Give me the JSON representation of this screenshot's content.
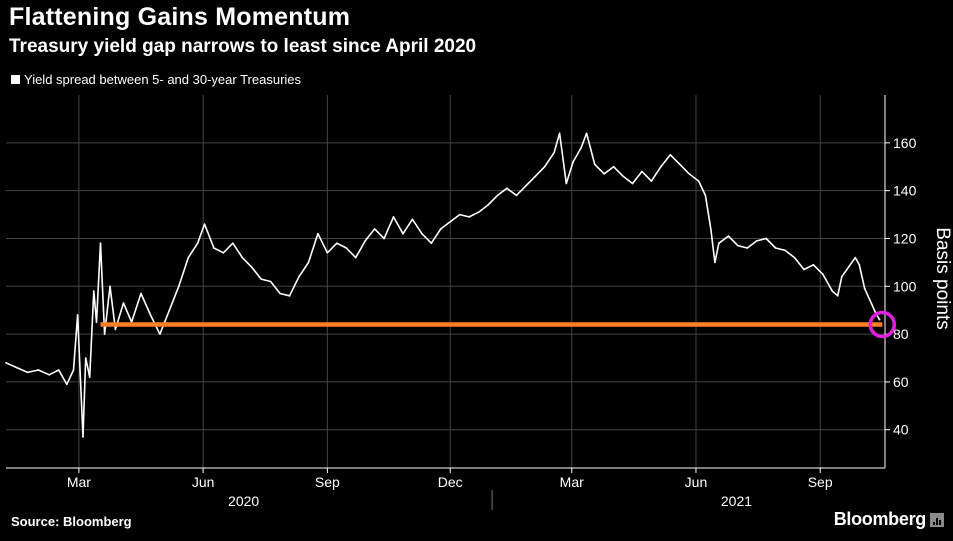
{
  "header": {
    "title": "Flattening Gains Momentum",
    "subtitle": "Treasury yield gap narrows to least since April 2020"
  },
  "legend": {
    "label": "Yield spread between 5- and 30-year Treasuries"
  },
  "footer": {
    "source": "Source: Bloomberg",
    "brand": "Bloomberg"
  },
  "colors": {
    "background": "#000000",
    "series": "#ffffff",
    "gridline": "#444444",
    "reference_line": "#ff7f27",
    "highlight_circle": "#e020e0"
  },
  "chart_data": {
    "type": "line",
    "title": "Flattening Gains Momentum",
    "subtitle": "Treasury yield gap narrows to least since April 2020",
    "ylabel": "Basis points",
    "xlabel": "",
    "ylim": [
      24,
      180
    ],
    "y_ticks": [
      40,
      60,
      80,
      100,
      120,
      140,
      160
    ],
    "x_tick_labels": [
      {
        "date": "2020-03-01",
        "label": "Mar"
      },
      {
        "date": "2020-06-01",
        "label": "Jun"
      },
      {
        "date": "2020-09-01",
        "label": "Sep"
      },
      {
        "date": "2020-12-01",
        "label": "Dec"
      },
      {
        "date": "2021-03-01",
        "label": "Mar"
      },
      {
        "date": "2021-06-01",
        "label": "Jun"
      },
      {
        "date": "2021-09-01",
        "label": "Sep"
      }
    ],
    "year_labels": [
      {
        "date": "2020-07-01",
        "label": "2020"
      },
      {
        "date": "2021-07-01",
        "label": "2021"
      }
    ],
    "x_range": [
      "2020-01-07",
      "2021-10-19"
    ],
    "grid": true,
    "y_axis_side": "right",
    "legend_position": "top-left",
    "series": [
      {
        "name": "Yield spread between 5- and 30-year Treasuries",
        "points": [
          [
            "2020-01-07",
            68
          ],
          [
            "2020-01-15",
            66
          ],
          [
            "2020-01-23",
            64
          ],
          [
            "2020-01-31",
            65
          ],
          [
            "2020-02-08",
            63
          ],
          [
            "2020-02-15",
            65
          ],
          [
            "2020-02-21",
            59
          ],
          [
            "2020-02-26",
            65
          ],
          [
            "2020-02-29",
            88
          ],
          [
            "2020-03-04",
            37
          ],
          [
            "2020-03-06",
            70
          ],
          [
            "2020-03-09",
            62
          ],
          [
            "2020-03-12",
            98
          ],
          [
            "2020-03-14",
            85
          ],
          [
            "2020-03-17",
            118
          ],
          [
            "2020-03-20",
            80
          ],
          [
            "2020-03-24",
            100
          ],
          [
            "2020-03-28",
            82
          ],
          [
            "2020-04-03",
            93
          ],
          [
            "2020-04-09",
            85
          ],
          [
            "2020-04-16",
            97
          ],
          [
            "2020-04-23",
            88
          ],
          [
            "2020-04-30",
            80
          ],
          [
            "2020-05-07",
            90
          ],
          [
            "2020-05-14",
            100
          ],
          [
            "2020-05-21",
            112
          ],
          [
            "2020-05-28",
            118
          ],
          [
            "2020-06-02",
            126
          ],
          [
            "2020-06-09",
            116
          ],
          [
            "2020-06-16",
            114
          ],
          [
            "2020-06-23",
            118
          ],
          [
            "2020-06-30",
            112
          ],
          [
            "2020-07-07",
            108
          ],
          [
            "2020-07-14",
            103
          ],
          [
            "2020-07-21",
            102
          ],
          [
            "2020-07-28",
            97
          ],
          [
            "2020-08-04",
            96
          ],
          [
            "2020-08-11",
            104
          ],
          [
            "2020-08-18",
            110
          ],
          [
            "2020-08-25",
            122
          ],
          [
            "2020-09-01",
            114
          ],
          [
            "2020-09-08",
            118
          ],
          [
            "2020-09-15",
            116
          ],
          [
            "2020-09-22",
            112
          ],
          [
            "2020-09-29",
            119
          ],
          [
            "2020-10-06",
            124
          ],
          [
            "2020-10-13",
            120
          ],
          [
            "2020-10-20",
            129
          ],
          [
            "2020-10-27",
            122
          ],
          [
            "2020-11-03",
            128
          ],
          [
            "2020-11-10",
            122
          ],
          [
            "2020-11-17",
            118
          ],
          [
            "2020-11-24",
            124
          ],
          [
            "2020-12-01",
            127
          ],
          [
            "2020-12-08",
            130
          ],
          [
            "2020-12-15",
            129
          ],
          [
            "2020-12-22",
            131
          ],
          [
            "2020-12-29",
            134
          ],
          [
            "2021-01-05",
            138
          ],
          [
            "2021-01-12",
            141
          ],
          [
            "2021-01-19",
            138
          ],
          [
            "2021-01-26",
            142
          ],
          [
            "2021-02-02",
            146
          ],
          [
            "2021-02-09",
            150
          ],
          [
            "2021-02-16",
            156
          ],
          [
            "2021-02-20",
            164
          ],
          [
            "2021-02-25",
            143
          ],
          [
            "2021-03-02",
            152
          ],
          [
            "2021-03-08",
            158
          ],
          [
            "2021-03-12",
            164
          ],
          [
            "2021-03-18",
            151
          ],
          [
            "2021-03-25",
            147
          ],
          [
            "2021-04-01",
            150
          ],
          [
            "2021-04-08",
            146
          ],
          [
            "2021-04-15",
            143
          ],
          [
            "2021-04-22",
            148
          ],
          [
            "2021-04-29",
            144
          ],
          [
            "2021-05-06",
            150
          ],
          [
            "2021-05-13",
            155
          ],
          [
            "2021-05-20",
            151
          ],
          [
            "2021-05-27",
            147
          ],
          [
            "2021-06-03",
            144
          ],
          [
            "2021-06-08",
            138
          ],
          [
            "2021-06-12",
            124
          ],
          [
            "2021-06-15",
            110
          ],
          [
            "2021-06-18",
            118
          ],
          [
            "2021-06-25",
            121
          ],
          [
            "2021-07-02",
            117
          ],
          [
            "2021-07-09",
            116
          ],
          [
            "2021-07-16",
            119
          ],
          [
            "2021-07-23",
            120
          ],
          [
            "2021-07-30",
            116
          ],
          [
            "2021-08-06",
            115
          ],
          [
            "2021-08-13",
            112
          ],
          [
            "2021-08-20",
            107
          ],
          [
            "2021-08-27",
            109
          ],
          [
            "2021-09-03",
            105
          ],
          [
            "2021-09-10",
            98
          ],
          [
            "2021-09-14",
            96
          ],
          [
            "2021-09-17",
            104
          ],
          [
            "2021-09-22",
            108
          ],
          [
            "2021-09-27",
            112
          ],
          [
            "2021-09-30",
            109
          ],
          [
            "2021-10-04",
            99
          ],
          [
            "2021-10-08",
            94
          ],
          [
            "2021-10-12",
            89
          ],
          [
            "2021-10-15",
            86
          ]
        ]
      }
    ],
    "annotations": [
      {
        "type": "horizontal_line",
        "value": 84,
        "from": "2020-03-17",
        "to": "2021-10-17",
        "color": "#ff7f27"
      },
      {
        "type": "circle",
        "date": "2021-10-17",
        "value": 84,
        "color": "#e020e0"
      }
    ]
  }
}
